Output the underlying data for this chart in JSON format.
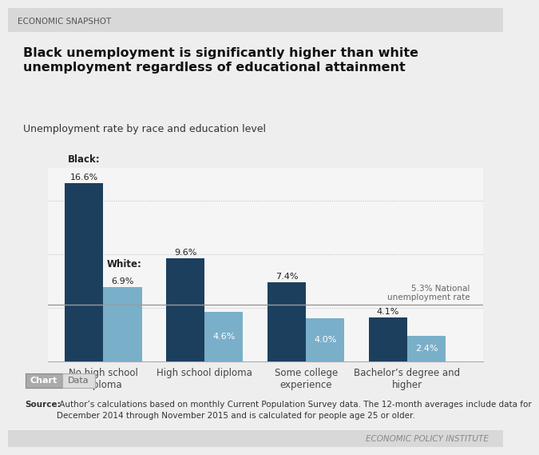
{
  "categories": [
    "No high school\ndiploma",
    "High school diploma",
    "Some college\nexperience",
    "Bachelor’s degree and\nhigher"
  ],
  "black_values": [
    16.6,
    9.6,
    7.4,
    4.1
  ],
  "white_values": [
    6.9,
    4.6,
    4.0,
    2.4
  ],
  "black_color": "#1c3f5e",
  "white_color": "#7aafc9",
  "national_rate": 5.3,
  "national_line_color": "#999999",
  "header": "ECONOMIC SNAPSHOT",
  "title": "Black unemployment is significantly higher than white\nunemployment regardless of educational attainment",
  "subtitle": "Unemployment rate by race and education level",
  "source_bold": "Source:",
  "source_rest": " Author’s calculations based on monthly Current Population Survey data. The 12-month averages include data for\nDecember 2014 through November 2015 and is calculated for people age 25 or older.",
  "footer_text": "ECONOMIC POLICY INSTITUTE",
  "national_label": "5.3% National\nunemployment rate",
  "black_label": "Black:",
  "white_label": "White:",
  "background_color": "#eeeeee",
  "chart_bg_color": "#f5f5f5",
  "ylim": [
    0,
    18
  ],
  "bar_width": 0.38
}
